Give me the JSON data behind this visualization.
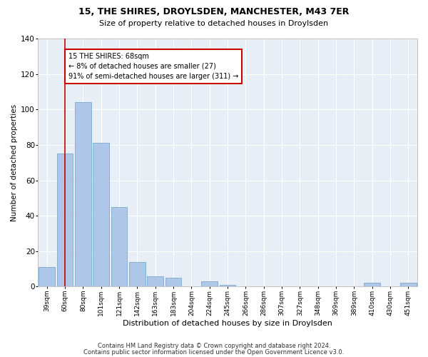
{
  "title1": "15, THE SHIRES, DROYLSDEN, MANCHESTER, M43 7ER",
  "title2": "Size of property relative to detached houses in Droylsden",
  "xlabel": "Distribution of detached houses by size in Droylsden",
  "ylabel": "Number of detached properties",
  "categories": [
    "39sqm",
    "60sqm",
    "80sqm",
    "101sqm",
    "121sqm",
    "142sqm",
    "163sqm",
    "183sqm",
    "204sqm",
    "224sqm",
    "245sqm",
    "266sqm",
    "286sqm",
    "307sqm",
    "327sqm",
    "348sqm",
    "369sqm",
    "389sqm",
    "410sqm",
    "430sqm",
    "451sqm"
  ],
  "values": [
    11,
    75,
    104,
    81,
    45,
    14,
    6,
    5,
    0,
    3,
    1,
    0,
    0,
    0,
    0,
    0,
    0,
    0,
    2,
    0,
    2
  ],
  "bar_color": "#aec6e8",
  "bar_edge_color": "#6a9fc8",
  "vline_x": 1.0,
  "vline_color": "#cc0000",
  "annotation_text": "15 THE SHIRES: 68sqm\n← 8% of detached houses are smaller (27)\n91% of semi-detached houses are larger (311) →",
  "annotation_box_color": "#ffffff",
  "annotation_border_color": "#cc0000",
  "ylim": [
    0,
    140
  ],
  "yticks": [
    0,
    20,
    40,
    60,
    80,
    100,
    120,
    140
  ],
  "bg_color": "#e8eef5",
  "grid_color": "#ffffff",
  "footer1": "Contains HM Land Registry data © Crown copyright and database right 2024.",
  "footer2": "Contains public sector information licensed under the Open Government Licence v3.0."
}
